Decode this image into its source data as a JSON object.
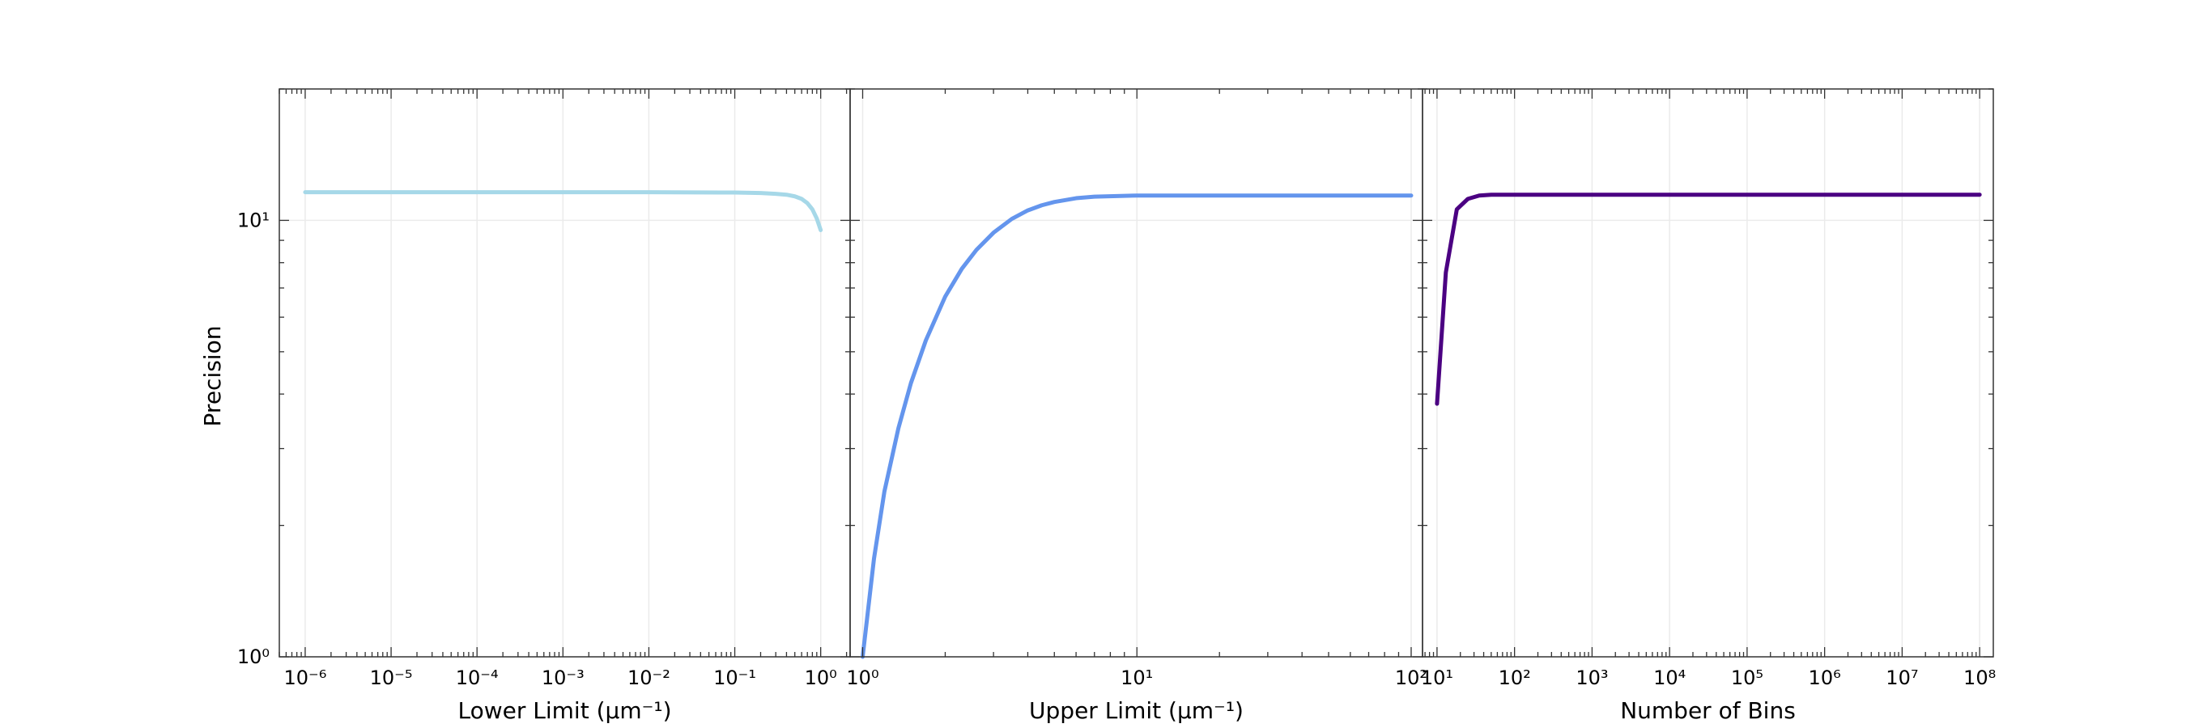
{
  "ylabel": "Precision",
  "chart_data": [
    {
      "type": "line",
      "xlabel": "Lower Limit (µm⁻¹)",
      "xscale": "log",
      "yscale": "log",
      "xlim": [
        5e-07,
        2.2
      ],
      "ylim": [
        1,
        20
      ],
      "xticks": [
        {
          "value": 1e-06,
          "label": "10⁻⁶"
        },
        {
          "value": 1e-05,
          "label": "10⁻⁵"
        },
        {
          "value": 0.0001,
          "label": "10⁻⁴"
        },
        {
          "value": 0.001,
          "label": "10⁻³"
        },
        {
          "value": 0.01,
          "label": "10⁻²"
        },
        {
          "value": 0.1,
          "label": "10⁻¹"
        },
        {
          "value": 1,
          "label": "10⁰"
        }
      ],
      "yticks": [
        {
          "value": 1,
          "label": "10⁰"
        },
        {
          "value": 10,
          "label": "10¹"
        }
      ],
      "grid": true,
      "series": [
        {
          "color": "#a6d8e8",
          "x": [
            1e-06,
            1e-05,
            0.0001,
            0.001,
            0.01,
            0.1,
            0.2,
            0.3,
            0.4,
            0.5,
            0.6,
            0.7,
            0.8,
            0.9,
            1.0
          ],
          "y": [
            11.6,
            11.6,
            11.6,
            11.6,
            11.6,
            11.58,
            11.55,
            11.5,
            11.45,
            11.35,
            11.2,
            10.95,
            10.6,
            10.1,
            9.5
          ]
        }
      ]
    },
    {
      "type": "line",
      "xlabel": "Upper Limit (µm⁻¹)",
      "xscale": "log",
      "yscale": "log",
      "xlim": [
        0.9,
        110
      ],
      "ylim": [
        1,
        20
      ],
      "xticks": [
        {
          "value": 1,
          "label": "10⁰"
        },
        {
          "value": 10,
          "label": "10¹"
        },
        {
          "value": 100,
          "label": "10²"
        }
      ],
      "yticks": [],
      "grid": true,
      "series": [
        {
          "color": "#6495ed",
          "x": [
            1.0,
            1.1,
            1.2,
            1.35,
            1.5,
            1.7,
            2.0,
            2.3,
            2.6,
            3.0,
            3.5,
            4.0,
            4.5,
            5.0,
            6.0,
            7.0,
            10,
            20,
            50,
            100
          ],
          "y": [
            1.0,
            1.68,
            2.39,
            3.34,
            4.24,
            5.31,
            6.69,
            7.75,
            8.56,
            9.37,
            10.08,
            10.54,
            10.83,
            11.02,
            11.24,
            11.33,
            11.4,
            11.4,
            11.4,
            11.4
          ]
        }
      ]
    },
    {
      "type": "line",
      "xlabel": "Number of Bins",
      "xscale": "log",
      "yscale": "log",
      "xlim": [
        6.5,
        150000000
      ],
      "ylim": [
        1,
        20
      ],
      "xticks": [
        {
          "value": 10,
          "label": "10¹"
        },
        {
          "value": 100,
          "label": "10²"
        },
        {
          "value": 1000,
          "label": "10³"
        },
        {
          "value": 10000,
          "label": "10⁴"
        },
        {
          "value": 100000,
          "label": "10⁵"
        },
        {
          "value": 1000000,
          "label": "10⁶"
        },
        {
          "value": 10000000,
          "label": "10⁷"
        },
        {
          "value": 100000000,
          "label": "10⁸"
        }
      ],
      "yticks": [],
      "grid": true,
      "series": [
        {
          "color": "#4b0082",
          "x": [
            10,
            13,
            18,
            25,
            35,
            50,
            100,
            1000,
            10000,
            100000,
            1000000,
            10000000,
            100000000
          ],
          "y": [
            3.8,
            7.6,
            10.6,
            11.2,
            11.4,
            11.45,
            11.45,
            11.45,
            11.45,
            11.45,
            11.45,
            11.45,
            11.45
          ]
        }
      ]
    }
  ]
}
